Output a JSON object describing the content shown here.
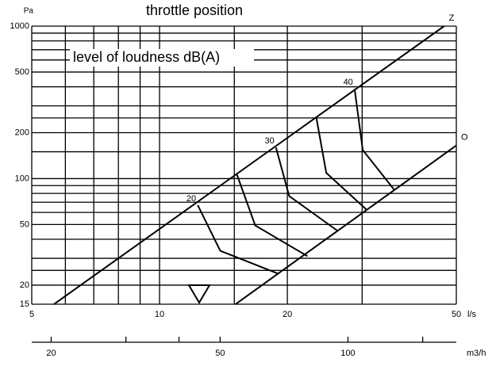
{
  "chart_data": {
    "type": "line",
    "annotations": [
      "throttle position",
      "level of loudness dB(A)"
    ],
    "y_label": "Pa",
    "x_label": "l/s",
    "x2_label": "m3/h",
    "log_x": true,
    "log_y": true,
    "color": "#000000",
    "xlim": [
      5,
      50
    ],
    "ylim": [
      15,
      1000
    ],
    "xticks": [
      5,
      10,
      20,
      50
    ],
    "xgrid": [
      6,
      7,
      8,
      9,
      15,
      30
    ],
    "yticks": [
      1000,
      500,
      200,
      100,
      50,
      20,
      15
    ],
    "ygrid": [
      900,
      800,
      700,
      600,
      400,
      300,
      250,
      150,
      90,
      80,
      70,
      60,
      40,
      30,
      25
    ],
    "x2lim": [
      18,
      180
    ],
    "x2ticks": [
      20,
      50,
      100
    ],
    "x2minor": [
      30,
      40,
      150
    ],
    "series": [
      {
        "name": "Z",
        "x": [
          5.64,
          46.8
        ],
        "values": [
          15,
          1000
        ]
      },
      {
        "name": "O",
        "x": [
          15.1,
          50
        ],
        "values": [
          15,
          165
        ]
      },
      {
        "name": "20",
        "x": [
          12.3,
          13.9,
          19.1
        ],
        "values": [
          67,
          33.6,
          23.7
        ]
      },
      {
        "x": [
          15.2,
          16.8,
          22.3
        ],
        "values": [
          107,
          49.3,
          31
        ]
      },
      {
        "name": "30",
        "x": [
          18.8,
          20.2,
          26.3
        ],
        "values": [
          160,
          76.8,
          45.3
        ]
      },
      {
        "x": [
          23.4,
          24.7,
          30.7
        ],
        "values": [
          252,
          109,
          62.7
        ]
      },
      {
        "name": "40",
        "x": [
          28.8,
          30.1,
          35.7
        ],
        "values": [
          388,
          154,
          84.5
        ]
      }
    ]
  }
}
